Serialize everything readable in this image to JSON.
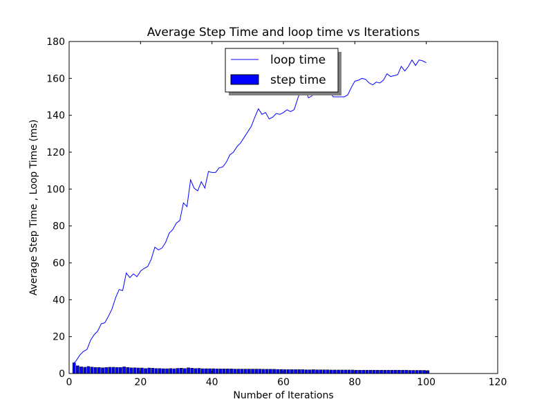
{
  "chart_data": {
    "type": "line",
    "title": "Average Step Time  and loop time vs Iterations",
    "xlabel": "Number of Iterations",
    "ylabel": "Average Step Time , Loop Time  (ms)",
    "xlim": [
      0,
      120
    ],
    "ylim": [
      0,
      180
    ],
    "xticks": [
      "0",
      "20",
      "40",
      "60",
      "80",
      "100",
      "120"
    ],
    "yticks": [
      "0",
      "20",
      "40",
      "60",
      "80",
      "100",
      "120",
      "140",
      "160",
      "180"
    ],
    "grid": false,
    "legend_position": "top-center",
    "series": [
      {
        "name": "loop time",
        "kind": "line",
        "color": "#0000ff",
        "x": [
          1,
          2,
          3,
          4,
          5,
          6,
          7,
          8,
          9,
          10,
          11,
          12,
          13,
          14,
          15,
          16,
          17,
          18,
          19,
          20,
          21,
          22,
          23,
          24,
          25,
          26,
          27,
          28,
          29,
          30,
          31,
          32,
          33,
          34,
          35,
          36,
          37,
          38,
          39,
          40,
          41,
          42,
          43,
          44,
          45,
          46,
          47,
          48,
          49,
          50,
          51,
          52,
          53,
          54,
          55,
          56,
          57,
          58,
          59,
          60,
          61,
          62,
          63,
          64,
          65,
          66,
          67,
          68,
          69,
          70,
          71,
          72,
          73,
          74,
          75,
          76,
          77,
          78,
          79,
          80,
          81,
          82,
          83,
          84,
          85,
          86,
          87,
          88,
          89,
          90,
          91,
          92,
          93,
          94,
          95,
          96,
          97,
          98,
          99,
          100
        ],
        "y": [
          5,
          7,
          10,
          12,
          13,
          18,
          21,
          23,
          27,
          27.5,
          31,
          35,
          41,
          45.5,
          45,
          54.5,
          52,
          54,
          52.5,
          55.5,
          57,
          58,
          62,
          68.5,
          67,
          68,
          71,
          76,
          78,
          81.5,
          83,
          92.5,
          90.5,
          105,
          100.5,
          99,
          104,
          100.5,
          109.5,
          109,
          109,
          111.5,
          112,
          114.5,
          118.5,
          120,
          123,
          125,
          128,
          131,
          134,
          139,
          143.5,
          140.5,
          141.5,
          138,
          139,
          141,
          140.5,
          141.5,
          143,
          142,
          143,
          149,
          154.5,
          154.5,
          149.5,
          150.5,
          154.5,
          152,
          151.5,
          151.5,
          152,
          150,
          150,
          150,
          150,
          151,
          155,
          158.5,
          159,
          160,
          159.5,
          157.5,
          156.5,
          158,
          157.5,
          159,
          162.5,
          161,
          161.5,
          162,
          166.5,
          164,
          166.5,
          170,
          167,
          170,
          169.5,
          168.5
        ]
      },
      {
        "name": "step time",
        "kind": "bar",
        "color": "#0000ff",
        "x": [
          1,
          2,
          3,
          4,
          5,
          6,
          7,
          8,
          9,
          10,
          11,
          12,
          13,
          14,
          15,
          16,
          17,
          18,
          19,
          20,
          21,
          22,
          23,
          24,
          25,
          26,
          27,
          28,
          29,
          30,
          31,
          32,
          33,
          34,
          35,
          36,
          37,
          38,
          39,
          40,
          41,
          42,
          43,
          44,
          45,
          46,
          47,
          48,
          49,
          50,
          51,
          52,
          53,
          54,
          55,
          56,
          57,
          58,
          59,
          60,
          61,
          62,
          63,
          64,
          65,
          66,
          67,
          68,
          69,
          70,
          71,
          72,
          73,
          74,
          75,
          76,
          77,
          78,
          79,
          80,
          81,
          82,
          83,
          84,
          85,
          86,
          87,
          88,
          89,
          90,
          91,
          92,
          93,
          94,
          95,
          96,
          97,
          98,
          99,
          100
        ],
        "y": [
          5.8,
          4.2,
          3.6,
          3.4,
          3.8,
          3.5,
          3.3,
          3.3,
          3.1,
          3.3,
          3.4,
          3.4,
          3.3,
          3.3,
          3.6,
          3.3,
          3.1,
          3.1,
          3.0,
          3.0,
          2.7,
          3.0,
          2.9,
          2.7,
          2.7,
          2.6,
          2.6,
          2.7,
          2.6,
          2.8,
          2.9,
          2.7,
          3.1,
          2.9,
          2.7,
          2.8,
          2.6,
          2.6,
          2.6,
          2.6,
          2.5,
          2.5,
          2.5,
          2.5,
          2.5,
          2.4,
          2.4,
          2.4,
          2.4,
          2.4,
          2.4,
          2.4,
          2.4,
          2.3,
          2.3,
          2.3,
          2.3,
          2.2,
          2.2,
          2.1,
          2.1,
          2.1,
          2.1,
          2.1,
          2.1,
          2.0,
          2.0,
          2.1,
          2.0,
          2.0,
          2.0,
          2.0,
          1.9,
          1.9,
          1.9,
          1.9,
          1.9,
          1.9,
          1.9,
          1.8,
          1.8,
          1.8,
          1.8,
          1.8,
          1.8,
          1.8,
          1.8,
          1.8,
          1.8,
          1.8,
          1.8,
          1.8,
          1.8,
          1.8,
          1.7,
          1.7,
          1.7,
          1.7,
          1.7,
          1.6
        ]
      }
    ]
  }
}
